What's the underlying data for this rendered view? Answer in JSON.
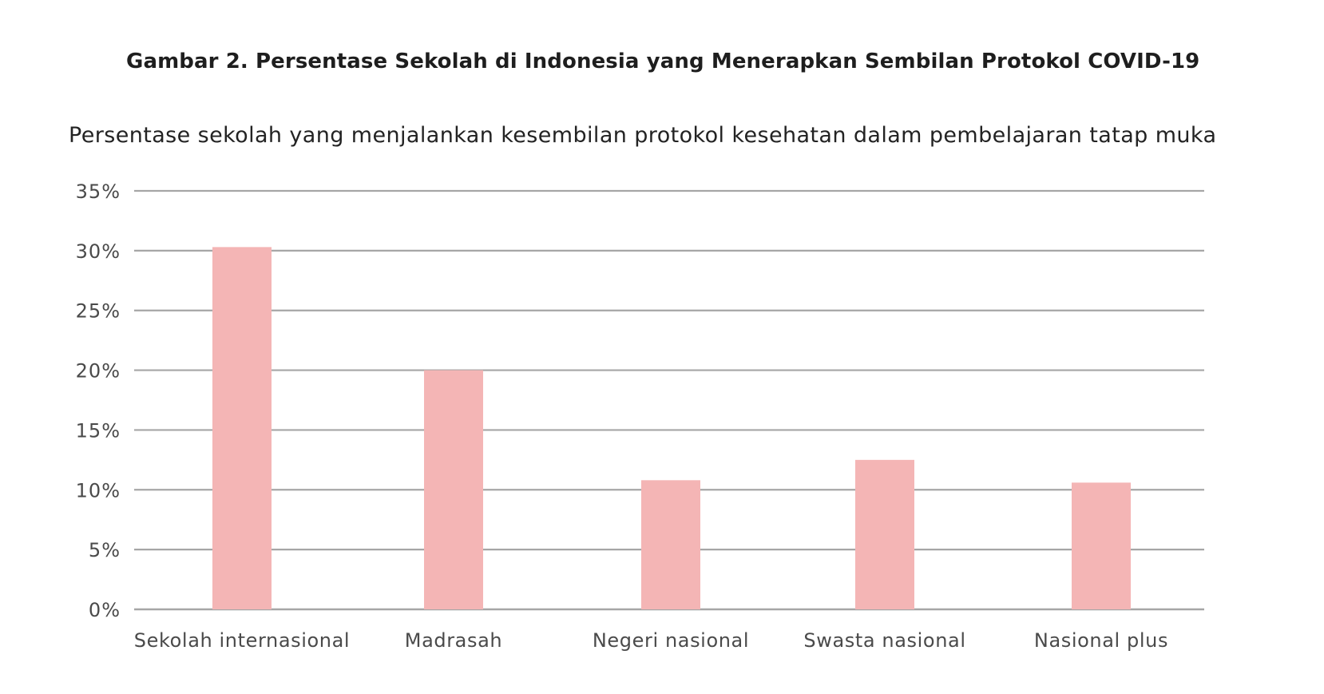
{
  "figure": {
    "title": "Gambar 2. Persentase Sekolah di Indonesia yang Menerapkan Sembilan Protokol COVID-19",
    "subtitle": "Persentase sekolah yang menjalankan kesembilan protokol kesehatan dalam pembelajaran tatap muka"
  },
  "chart_data": {
    "type": "bar",
    "categories": [
      "Sekolah internasional",
      "Madrasah",
      "Negeri nasional",
      "Swasta nasional",
      "Nasional plus"
    ],
    "values": [
      30.3,
      20.0,
      10.8,
      12.5,
      10.6
    ],
    "ylim": [
      0,
      35
    ],
    "yticks": [
      0,
      5,
      10,
      15,
      20,
      25,
      30,
      35
    ],
    "ytick_labels": [
      "0%",
      "5%",
      "10%",
      "15%",
      "20%",
      "25%",
      "30%",
      "35%"
    ],
    "xlabel": "",
    "ylabel": "",
    "grid": true,
    "legend": "none",
    "bar_color": "#f4b5b5",
    "grid_color": "#a6a6a6"
  }
}
